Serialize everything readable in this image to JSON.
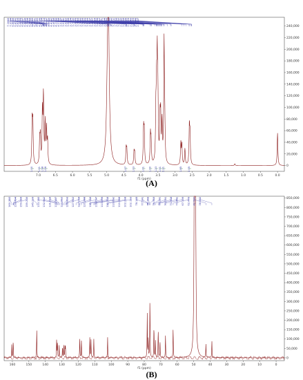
{
  "chart_data": [
    {
      "panel": "(A)",
      "type": "line",
      "xlabel": "f1 (ppm)",
      "xlim": [
        8.0,
        -0.2
      ],
      "x_reversed": true,
      "ylim": [
        -10000,
        255000
      ],
      "x_ticks": [
        7.0,
        6.5,
        6.0,
        5.5,
        5.0,
        4.5,
        4.0,
        3.5,
        3.0,
        2.5,
        2.0,
        1.5,
        1.0,
        0.5,
        0.0
      ],
      "x_tick_labels": [
        "7.0",
        "6.5",
        "6.0",
        "5.5",
        "5.0",
        "4.5",
        "4.0",
        "3.5",
        "3.0",
        "2.5",
        "2.0",
        "1.5",
        "1.0",
        "0.5",
        "0.0"
      ],
      "y_ticks": [
        0,
        20000,
        40000,
        60000,
        80000,
        100000,
        120000,
        140000,
        160000,
        180000,
        200000,
        220000,
        240000
      ],
      "y_tick_labels": [
        "0",
        "20,000",
        "40,000",
        "60,000",
        "80,000",
        "100,000",
        "120,000",
        "140,000",
        "160,000",
        "180,000",
        "200,000",
        "220,000",
        "240,000"
      ],
      "peaks": [
        {
          "ppm": 7.18,
          "height": 72000,
          "width": 0.012
        },
        {
          "ppm": 7.16,
          "height": 68000,
          "width": 0.012
        },
        {
          "ppm": 6.96,
          "height": 40000,
          "width": 0.012
        },
        {
          "ppm": 6.94,
          "height": 45000,
          "width": 0.012
        },
        {
          "ppm": 6.88,
          "height": 90000,
          "width": 0.012
        },
        {
          "ppm": 6.85,
          "height": 115000,
          "width": 0.012
        },
        {
          "ppm": 6.8,
          "height": 70000,
          "width": 0.012
        },
        {
          "ppm": 6.76,
          "height": 60000,
          "width": 0.012
        },
        {
          "ppm": 6.73,
          "height": 40000,
          "width": 0.012
        },
        {
          "ppm": 4.95,
          "height": 255000,
          "width": 0.03
        },
        {
          "ppm": 4.98,
          "height": 80000,
          "width": 0.03
        },
        {
          "ppm": 4.43,
          "height": 28000,
          "width": 0.012
        },
        {
          "ppm": 4.41,
          "height": 25000,
          "width": 0.012
        },
        {
          "ppm": 4.2,
          "height": 22000,
          "width": 0.012
        },
        {
          "ppm": 4.18,
          "height": 20000,
          "width": 0.012
        },
        {
          "ppm": 3.92,
          "height": 60000,
          "width": 0.012
        },
        {
          "ppm": 3.9,
          "height": 55000,
          "width": 0.012
        },
        {
          "ppm": 3.72,
          "height": 50000,
          "width": 0.012
        },
        {
          "ppm": 3.7,
          "height": 38000,
          "width": 0.012
        },
        {
          "ppm": 3.56,
          "height": 80000,
          "width": 0.012
        },
        {
          "ppm": 3.54,
          "height": 105000,
          "width": 0.012
        },
        {
          "ppm": 3.52,
          "height": 160000,
          "width": 0.012
        },
        {
          "ppm": 3.5,
          "height": 95000,
          "width": 0.012
        },
        {
          "ppm": 3.44,
          "height": 70000,
          "width": 0.012
        },
        {
          "ppm": 3.42,
          "height": 75000,
          "width": 0.012
        },
        {
          "ppm": 3.38,
          "height": 68000,
          "width": 0.012
        },
        {
          "ppm": 3.32,
          "height": 205000,
          "width": 0.012
        },
        {
          "ppm": 3.3,
          "height": 60000,
          "width": 0.012
        },
        {
          "ppm": 2.83,
          "height": 38000,
          "width": 0.012
        },
        {
          "ppm": 2.8,
          "height": 35000,
          "width": 0.012
        },
        {
          "ppm": 2.71,
          "height": 28000,
          "width": 0.012
        },
        {
          "ppm": 2.58,
          "height": 65000,
          "width": 0.012
        },
        {
          "ppm": 2.56,
          "height": 50000,
          "width": 0.012
        },
        {
          "ppm": 1.25,
          "height": 3000,
          "width": 0.012
        },
        {
          "ppm": 0.0,
          "height": 56000,
          "width": 0.012
        }
      ],
      "peak_labels": [
        "7.1663",
        "7.0584",
        "6.8845",
        "6.8572",
        "6.8304",
        "6.8478",
        "6.8397",
        "6.8436",
        "6.7908",
        "6.7758",
        "6.7549",
        "6.7521",
        "6.6943",
        "4.9639",
        "4.9354",
        "4.9524",
        "4.8867",
        "4.8695",
        "4.4392",
        "4.4096",
        "4.1969",
        "4.1788",
        "3.9387",
        "3.9381",
        "3.9212",
        "3.9035",
        "3.7304",
        "3.7000",
        "3.6875",
        "3.5944",
        "3.5433",
        "3.5425",
        "3.5379",
        "3.5229",
        "3.5007",
        "3.4877",
        "3.4616",
        "3.4484",
        "3.4227",
        "3.4071",
        "3.3894",
        "3.3870",
        "3.3255",
        "3.3230",
        "3.2201",
        "3.1159",
        "3.1130",
        "2.7930",
        "2.7335",
        "2.6835",
        "2.5879",
        "2.5843",
        "2.5179",
        "2.5446",
        "2.5107"
      ],
      "integrals": [
        "1.00",
        "1.01",
        "1.98",
        "1.06",
        "1.07",
        "1.03",
        "1.01",
        "1.00",
        "1.23",
        "1.01",
        "2.21",
        "1.85",
        "2.05"
      ]
    },
    {
      "panel": "(B)",
      "type": "line",
      "xlabel": "f1 (ppm)",
      "xlim": [
        165,
        -5
      ],
      "x_reversed": true,
      "ylim": [
        -15000,
        860000
      ],
      "x_ticks": [
        160,
        150,
        140,
        130,
        120,
        110,
        100,
        90,
        80,
        70,
        60,
        50,
        40,
        30,
        20,
        10,
        0
      ],
      "x_tick_labels": [
        "160",
        "150",
        "140",
        "130",
        "120",
        "110",
        "100",
        "90",
        "80",
        "70",
        "60",
        "50",
        "40",
        "30",
        "20",
        "10",
        "0"
      ],
      "y_ticks": [
        0,
        50000,
        100000,
        150000,
        200000,
        250000,
        300000,
        350000,
        400000,
        450000,
        500000,
        550000,
        600000,
        650000,
        700000,
        750000,
        800000,
        850000
      ],
      "y_tick_labels": [
        "0",
        "50,000",
        "100,000",
        "150,000",
        "200,000",
        "250,000",
        "300,000",
        "350,000",
        "400,000",
        "450,000",
        "500,000",
        "550,000",
        "600,000",
        "650,000",
        "700,000",
        "750,000",
        "800,000",
        "850,000"
      ],
      "peaks": [
        {
          "ppm": 160.38,
          "height": 70000,
          "width": 0.12
        },
        {
          "ppm": 159.49,
          "height": 90000,
          "width": 0.12
        },
        {
          "ppm": 145.23,
          "height": 150000,
          "width": 0.12
        },
        {
          "ppm": 133.15,
          "height": 100000,
          "width": 0.12
        },
        {
          "ppm": 132.66,
          "height": 80000,
          "width": 0.12
        },
        {
          "ppm": 131.61,
          "height": 65000,
          "width": 0.12
        },
        {
          "ppm": 129.61,
          "height": 60000,
          "width": 0.12
        },
        {
          "ppm": 128.8,
          "height": 65000,
          "width": 0.12
        },
        {
          "ppm": 128.1,
          "height": 55000,
          "width": 0.12
        },
        {
          "ppm": 127.8,
          "height": 60000,
          "width": 0.12
        },
        {
          "ppm": 119.13,
          "height": 105000,
          "width": 0.12
        },
        {
          "ppm": 118.1,
          "height": 95000,
          "width": 0.12
        },
        {
          "ppm": 113.05,
          "height": 110000,
          "width": 0.12
        },
        {
          "ppm": 112.3,
          "height": 95000,
          "width": 0.12
        },
        {
          "ppm": 110.6,
          "height": 100000,
          "width": 0.12
        },
        {
          "ppm": 102.23,
          "height": 110000,
          "width": 0.12
        },
        {
          "ppm": 78.19,
          "height": 235000,
          "width": 0.12
        },
        {
          "ppm": 77.57,
          "height": 95000,
          "width": 0.12
        },
        {
          "ppm": 76.56,
          "height": 320000,
          "width": 0.12
        },
        {
          "ppm": 74.12,
          "height": 170000,
          "width": 0.12
        },
        {
          "ppm": 73.21,
          "height": 90000,
          "width": 0.12
        },
        {
          "ppm": 71.54,
          "height": 150000,
          "width": 0.12
        },
        {
          "ppm": 70.45,
          "height": 90000,
          "width": 0.12
        },
        {
          "ppm": 67.11,
          "height": 120000,
          "width": 0.12
        },
        {
          "ppm": 62.48,
          "height": 160000,
          "width": 0.12
        },
        {
          "ppm": 49.6,
          "height": 860000,
          "width": 0.25
        },
        {
          "ppm": 49.3,
          "height": 860000,
          "width": 0.25
        },
        {
          "ppm": 48.9,
          "height": 860000,
          "width": 0.25
        },
        {
          "ppm": 42.59,
          "height": 70000,
          "width": 0.12
        },
        {
          "ppm": 38.98,
          "height": 90000,
          "width": 0.12
        }
      ],
      "peak_labels": [
        "160.383",
        "159.494",
        "159.326",
        "159.209",
        "145.229",
        "133.152",
        "132.662",
        "131.618",
        "131.587",
        "129.612",
        "128.803",
        "127.822",
        "127.054",
        "121.388",
        "119.128",
        "118.097",
        "113.055",
        "112.336",
        "110.602",
        "110.046",
        "102.228",
        "102.123",
        "78.145",
        "77.571",
        "76.749",
        "76.559",
        "74.121",
        "73.211",
        "71.538",
        "70.451",
        "67.109",
        "62.479",
        "42.591",
        "38.982"
      ]
    }
  ],
  "panel_labels": [
    "(A)",
    "(B)"
  ],
  "colors": {
    "spectrum": "#8b1a1a",
    "peak_labels": "#3a3aa8",
    "axis": "#333333",
    "integral": "#2e7d32"
  }
}
